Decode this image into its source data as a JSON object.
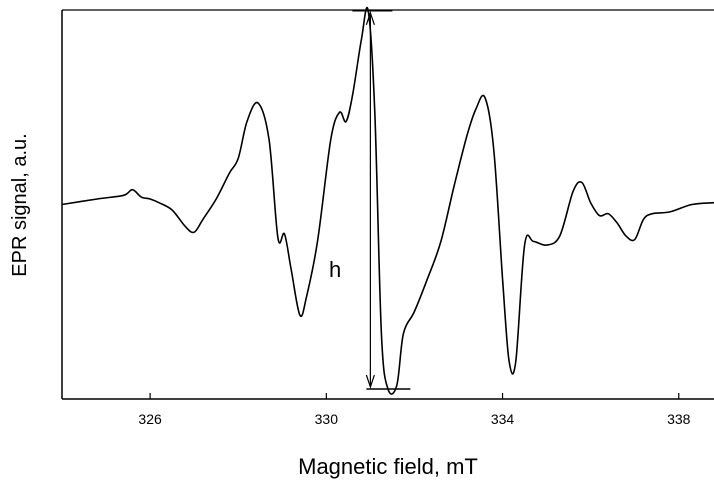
{
  "chart_data": {
    "type": "line",
    "title": "",
    "xlabel": "Magnetic field, mT",
    "ylabel": "EPR signal, a.u.",
    "xlim": [
      324,
      338.8
    ],
    "ylim": [
      -1.0,
      1.0
    ],
    "x_ticks": [
      326,
      330,
      334,
      338
    ],
    "x_tick_labels": [
      "326",
      "330",
      "334",
      "338"
    ],
    "y_ticks_visible": false,
    "grid": false,
    "legend": "none",
    "series": [
      {
        "color": "#000000",
        "x": [
          324.0,
          324.8,
          325.4,
          325.6,
          325.8,
          326.0,
          326.2,
          326.5,
          326.8,
          327.0,
          327.2,
          327.5,
          327.8,
          328.0,
          328.2,
          328.45,
          328.7,
          328.9,
          329.05,
          329.2,
          329.4,
          329.55,
          329.8,
          330.1,
          330.3,
          330.45,
          330.6,
          330.8,
          330.95,
          331.1,
          331.25,
          331.4,
          331.6,
          331.75,
          332.0,
          332.3,
          332.6,
          332.9,
          333.2,
          333.4,
          333.6,
          333.8,
          334.0,
          334.15,
          334.3,
          334.5,
          334.7,
          335.0,
          335.3,
          335.6,
          335.8,
          336.0,
          336.2,
          336.4,
          336.6,
          336.8,
          337.0,
          337.2,
          337.4,
          337.8,
          338.3,
          338.8
        ],
        "y": [
          0.0,
          0.03,
          0.05,
          0.08,
          0.04,
          0.03,
          0.01,
          -0.03,
          -0.12,
          -0.15,
          -0.08,
          0.03,
          0.17,
          0.25,
          0.45,
          0.55,
          0.35,
          -0.18,
          -0.16,
          -0.35,
          -0.6,
          -0.5,
          -0.2,
          0.35,
          0.5,
          0.45,
          0.6,
          0.9,
          1.05,
          0.5,
          -0.7,
          -1.0,
          -0.98,
          -0.7,
          -0.58,
          -0.4,
          -0.2,
          0.1,
          0.38,
          0.52,
          0.58,
          0.3,
          -0.4,
          -0.85,
          -0.85,
          -0.22,
          -0.2,
          -0.22,
          -0.17,
          0.07,
          0.12,
          0.01,
          -0.06,
          -0.05,
          -0.1,
          -0.17,
          -0.19,
          -0.08,
          -0.05,
          -0.04,
          0.0,
          0.01
        ]
      }
    ],
    "annotations": [
      {
        "text": "h",
        "x": 330.2,
        "y": -0.35
      }
    ],
    "marker": {
      "x": 331.0,
      "y_top": 1.05,
      "y_bottom": -1.0
    }
  }
}
